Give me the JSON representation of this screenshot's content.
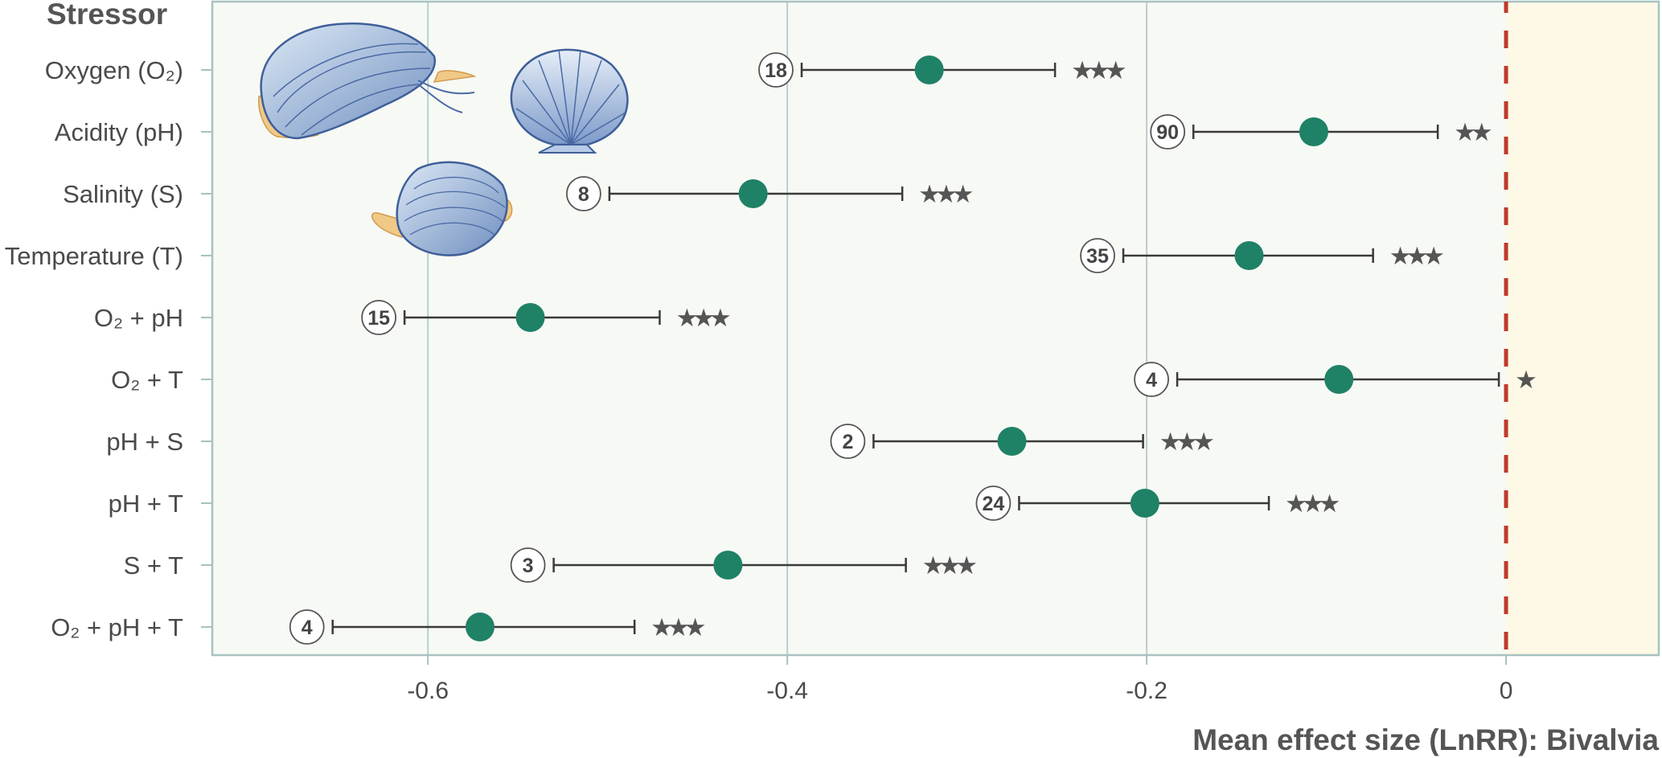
{
  "chart_data": {
    "type": "forest",
    "column_title": "Stressor",
    "xlabel": "Mean effect size (LnRR): Bivalvia",
    "xlim": [
      -0.72,
      0.085
    ],
    "xticks": [
      -0.6,
      -0.4,
      -0.2,
      0
    ],
    "xtick_labels": [
      "-0.6",
      "-0.4",
      "-0.2",
      "0"
    ],
    "reference_line": 0,
    "grid": true,
    "rows": [
      {
        "label": "Oxygen (O₂)",
        "mean": -0.321,
        "lo": -0.392,
        "hi": -0.251,
        "n": "18",
        "significance": "★★★"
      },
      {
        "label": "Acidity (pH)",
        "mean": -0.107,
        "lo": -0.174,
        "hi": -0.038,
        "n": "90",
        "significance": "★★"
      },
      {
        "label": "Salinity (S)",
        "mean": -0.419,
        "lo": -0.499,
        "hi": -0.336,
        "n": "8",
        "significance": "★★★"
      },
      {
        "label": "Temperature (T)",
        "mean": -0.143,
        "lo": -0.213,
        "hi": -0.074,
        "n": "35",
        "significance": "★★★"
      },
      {
        "label": "O₂ + pH",
        "mean": -0.543,
        "lo": -0.613,
        "hi": -0.471,
        "n": "15",
        "significance": "★★★"
      },
      {
        "label": "O₂ + T",
        "mean": -0.093,
        "lo": -0.183,
        "hi": -0.004,
        "n": "4",
        "significance": "★"
      },
      {
        "label": "pH + S",
        "mean": -0.275,
        "lo": -0.352,
        "hi": -0.202,
        "n": "2",
        "significance": "★★★"
      },
      {
        "label": "pH + T",
        "mean": -0.201,
        "lo": -0.271,
        "hi": -0.132,
        "n": "24",
        "significance": "★★★"
      },
      {
        "label": "S + T",
        "mean": -0.433,
        "lo": -0.53,
        "hi": -0.334,
        "n": "3",
        "significance": "★★★"
      },
      {
        "label": "O₂ + pH + T",
        "mean": -0.571,
        "lo": -0.653,
        "hi": -0.485,
        "n": "4",
        "significance": "★★★"
      }
    ],
    "colors": {
      "point": "#1f8166",
      "whisker": "#3a3a3a",
      "negative_region": "#f7f9f5",
      "positive_region": "#fdf9e6",
      "reference_line": "#c0392b",
      "grid": "#b9cfcf",
      "frame": "#a7c2c0"
    }
  }
}
